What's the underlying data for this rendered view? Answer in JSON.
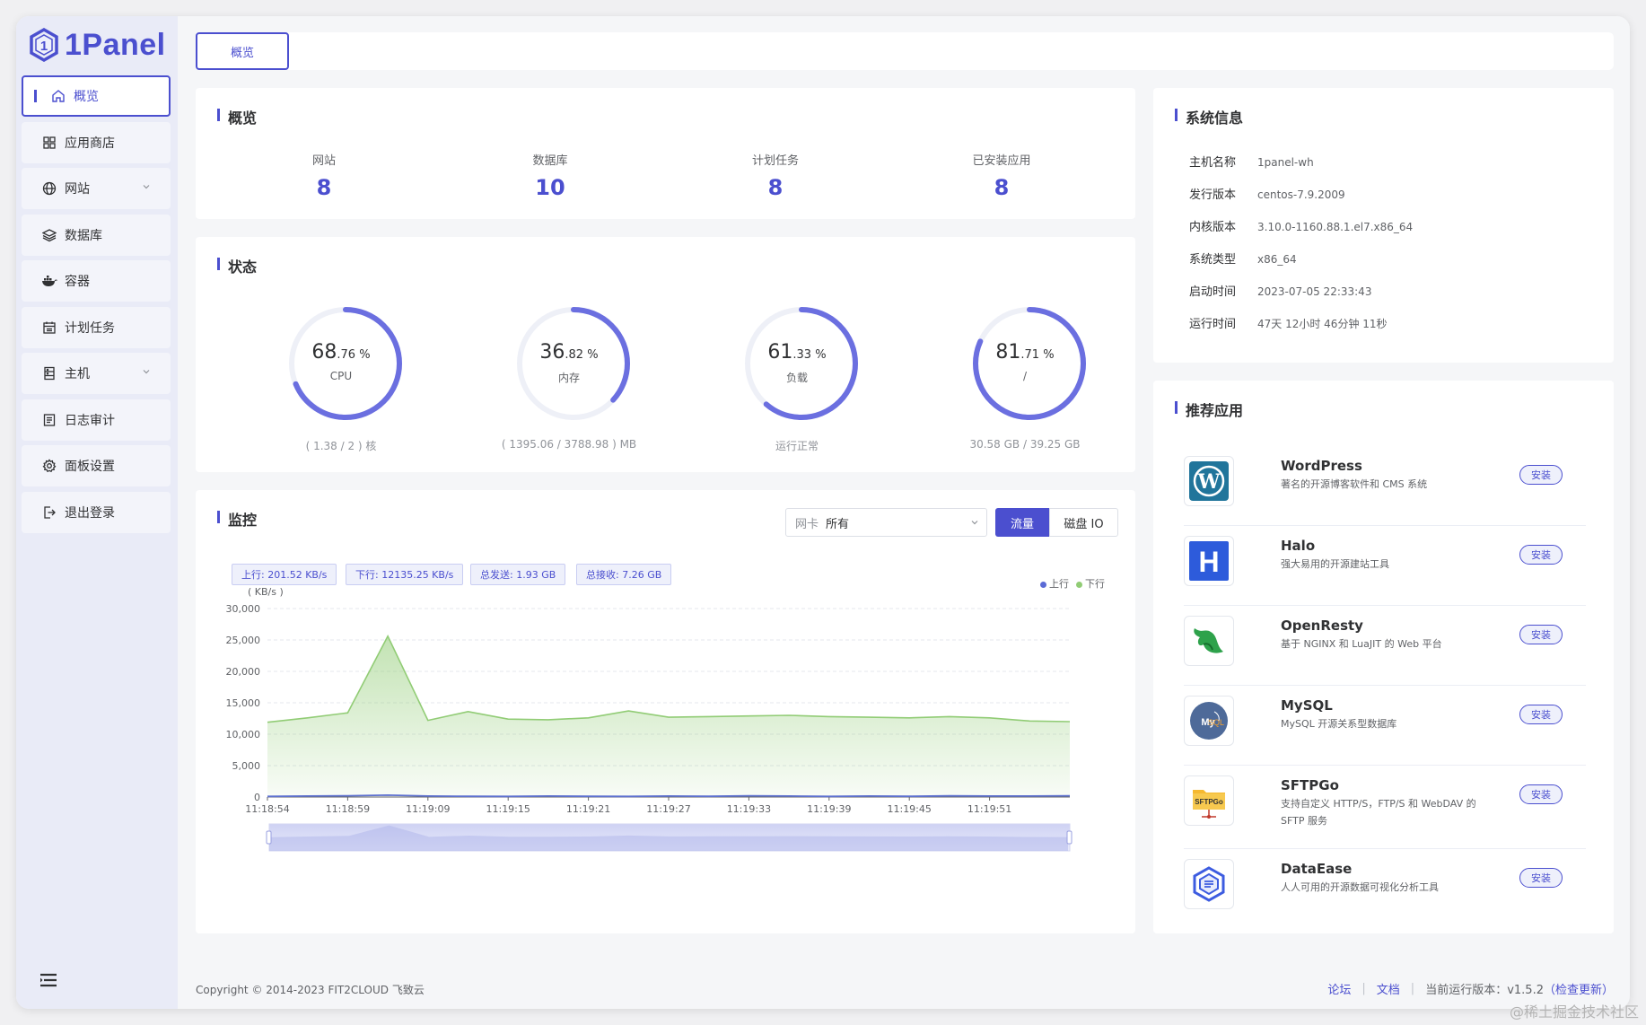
{
  "app": {
    "logo_text": "1Panel"
  },
  "sidebar": {
    "items": [
      {
        "label": "概览",
        "icon": "home-icon",
        "active": true
      },
      {
        "label": "应用商店",
        "icon": "grid-icon"
      },
      {
        "label": "网站",
        "icon": "globe-icon",
        "expandable": true
      },
      {
        "label": "数据库",
        "icon": "layers-icon"
      },
      {
        "label": "容器",
        "icon": "docker-icon"
      },
      {
        "label": "计划任务",
        "icon": "calendar-icon"
      },
      {
        "label": "主机",
        "icon": "server-icon",
        "expandable": true
      },
      {
        "label": "日志审计",
        "icon": "log-icon"
      },
      {
        "label": "面板设置",
        "icon": "gear-icon"
      },
      {
        "label": "退出登录",
        "icon": "logout-icon"
      }
    ]
  },
  "tabs": [
    {
      "label": "概览"
    }
  ],
  "overview": {
    "title": "概览",
    "items": [
      {
        "label": "网站",
        "value": "8"
      },
      {
        "label": "数据库",
        "value": "10"
      },
      {
        "label": "计划任务",
        "value": "8"
      },
      {
        "label": "已安装应用",
        "value": "8"
      }
    ]
  },
  "status": {
    "title": "状态",
    "gauges": [
      {
        "int": "68",
        "dec": ".76",
        "unit": " %",
        "name": "CPU",
        "detail": "( 1.38 / 2 ) 核",
        "percent": 68.76
      },
      {
        "int": "36",
        "dec": ".82",
        "unit": " %",
        "name": "内存",
        "detail": "( 1395.06 / 3788.98 ) MB",
        "percent": 36.82
      },
      {
        "int": "61",
        "dec": ".33",
        "unit": " %",
        "name": "负载",
        "detail": "运行正常",
        "percent": 61.33
      },
      {
        "int": "81",
        "dec": ".71",
        "unit": " %",
        "name": "/",
        "detail": "30.58 GB / 39.25 GB",
        "percent": 81.71
      }
    ]
  },
  "monitor": {
    "title": "监控",
    "nic_label": "网卡",
    "nic_value": "所有",
    "btn_flow": "流量",
    "btn_disk": "磁盘 IO",
    "tags": [
      "上行: 201.52 KB/s",
      "下行: 12135.25 KB/s",
      "总发送: 1.93 GB",
      "总接收: 7.26 GB"
    ],
    "legend": {
      "up": "上行",
      "down": "下行"
    }
  },
  "chart_data": {
    "type": "area",
    "ylabel": "( KB/s )",
    "ylim": [
      0,
      30000
    ],
    "yticks": [
      "30,000",
      "25,000",
      "20,000",
      "15,000",
      "10,000",
      "5,000",
      "0"
    ],
    "xticks": [
      "11:18:54",
      "11:18:59",
      "11:19:09",
      "11:19:15",
      "11:19:21",
      "11:19:27",
      "11:19:33",
      "11:19:39",
      "11:19:45",
      "11:19:51"
    ],
    "series": [
      {
        "name": "上行",
        "color": "#5b6bd6",
        "values": [
          100,
          150,
          200,
          300,
          150,
          120,
          100,
          150,
          120,
          100,
          150,
          120,
          200,
          150,
          100,
          150,
          120,
          180,
          150,
          150,
          200
        ]
      },
      {
        "name": "下行",
        "color": "#91cc75",
        "values": [
          11900,
          12600,
          13400,
          25600,
          12200,
          13600,
          12400,
          12300,
          12600,
          13700,
          12700,
          12800,
          12900,
          13000,
          12800,
          12700,
          12600,
          12800,
          12600,
          12100,
          12000
        ]
      }
    ]
  },
  "sysinfo": {
    "title": "系统信息",
    "rows": [
      {
        "key": "主机名称",
        "value": "1panel-wh"
      },
      {
        "key": "发行版本",
        "value": "centos-7.9.2009"
      },
      {
        "key": "内核版本",
        "value": "3.10.0-1160.88.1.el7.x86_64"
      },
      {
        "key": "系统类型",
        "value": "x86_64"
      },
      {
        "key": "启动时间",
        "value": "2023-07-05 22:33:43"
      },
      {
        "key": "运行时间",
        "value": "47天 12小时 46分钟 11秒"
      }
    ]
  },
  "apps": {
    "title": "推荐应用",
    "install_label": "安装",
    "items": [
      {
        "name": "WordPress",
        "desc": "著名的开源博客软件和 CMS 系统",
        "icon": "wordpress-icon"
      },
      {
        "name": "Halo",
        "desc": "强大易用的开源建站工具",
        "icon": "halo-icon"
      },
      {
        "name": "OpenResty",
        "desc": "基于 NGINX 和 LuaJIT 的 Web 平台",
        "icon": "openresty-icon"
      },
      {
        "name": "MySQL",
        "desc": "MySQL 开源关系型数据库",
        "icon": "mysql-icon"
      },
      {
        "name": "SFTPGo",
        "desc": "支持自定义 HTTP/S，FTP/S 和 WebDAV 的 SFTP 服务",
        "icon": "sftpgo-icon"
      },
      {
        "name": "DataEase",
        "desc": "人人可用的开源数据可视化分析工具",
        "icon": "dataease-icon"
      }
    ]
  },
  "footer": {
    "copyright": "Copyright © 2014-2023 FIT2CLOUD 飞致云",
    "forum": "论坛",
    "docs": "文档",
    "version_label": "当前运行版本：",
    "version": "v1.5.2",
    "check_update": "（检查更新）"
  },
  "watermark": "@稀土掘金技术社区",
  "colors": {
    "accent": "#4b4fcf",
    "sidebar_bg": "#e9ebf7",
    "download": "#91cc75",
    "upload": "#5b6bd6"
  }
}
